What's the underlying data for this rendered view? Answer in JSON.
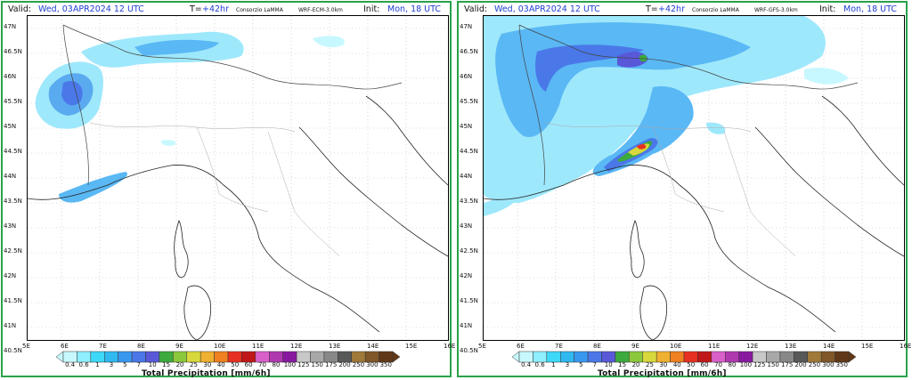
{
  "panels": [
    {
      "id": "ecm",
      "valid_label": "Valid:",
      "valid_value": "Wed, 03APR2024  12 UTC",
      "lead_label": "T=",
      "lead_value": "+42hr",
      "agency": "Consorzio LaMMA",
      "model": "WRF-ECM-3.0km",
      "init_label": "Init:",
      "init_value": "Mon, 18 UTC"
    },
    {
      "id": "gfs",
      "valid_label": "Valid:",
      "valid_value": "Wed, 03APR2024  12 UTC",
      "lead_label": "T=",
      "lead_value": "+42hr",
      "agency": "Consorzio LaMMA",
      "model": "WRF-GFS-3.0km",
      "init_label": "Init:",
      "init_value": "Mon, 18 UTC"
    }
  ],
  "lat_labels": [
    "47N",
    "46.5N",
    "46N",
    "45.5N",
    "45N",
    "44.5N",
    "44N",
    "43.5N",
    "43N",
    "42.5N",
    "42N",
    "41.5N",
    "41N",
    "40.5N"
  ],
  "lon_labels": [
    "5E",
    "6E",
    "7E",
    "8E",
    "9E",
    "10E",
    "11E",
    "12E",
    "13E",
    "14E",
    "15E",
    "16E"
  ],
  "legend": {
    "title": "Total Precipitation [mm/6h]",
    "levels": [
      "0.4",
      "0.6",
      "1",
      "3",
      "5",
      "7",
      "10",
      "15",
      "20",
      "25",
      "30",
      "40",
      "50",
      "60",
      "70",
      "80",
      "100",
      "125",
      "150",
      "175",
      "200",
      "250",
      "300",
      "350"
    ],
    "colors": [
      "#c8f8ff",
      "#8ef0ff",
      "#3ed8f8",
      "#30b8f0",
      "#3898f0",
      "#4a78e8",
      "#5858d8",
      "#3caa3c",
      "#8cc83c",
      "#d8d83c",
      "#f0b030",
      "#f08020",
      "#e83020",
      "#c01818",
      "#d860c8",
      "#b038b0",
      "#8818a0",
      "#c8c8c8",
      "#a8a8a8",
      "#888888",
      "#585858",
      "#a07838",
      "#805828",
      "#603818"
    ]
  }
}
